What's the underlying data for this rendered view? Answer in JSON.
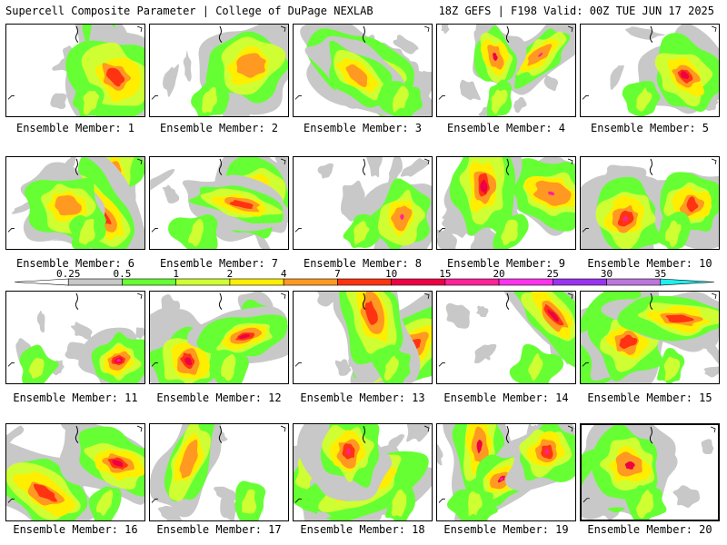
{
  "header": {
    "title_left": "Supercell Composite Parameter | College of DuPage NEXLAB",
    "title_right": "18Z GEFS | F198 Valid: 00Z TUE JUN 17 2025"
  },
  "caption_prefix": "Ensemble Member: ",
  "members": [
    {
      "id": 1,
      "label": "Ensemble Member: 1"
    },
    {
      "id": 2,
      "label": "Ensemble Member: 2"
    },
    {
      "id": 3,
      "label": "Ensemble Member: 3"
    },
    {
      "id": 4,
      "label": "Ensemble Member: 4"
    },
    {
      "id": 5,
      "label": "Ensemble Member: 5"
    },
    {
      "id": 6,
      "label": "Ensemble Member: 6"
    },
    {
      "id": 7,
      "label": "Ensemble Member: 7"
    },
    {
      "id": 8,
      "label": "Ensemble Member: 8"
    },
    {
      "id": 9,
      "label": "Ensemble Member: 9"
    },
    {
      "id": 10,
      "label": "Ensemble Member: 10"
    },
    {
      "id": 11,
      "label": "Ensemble Member: 11"
    },
    {
      "id": 12,
      "label": "Ensemble Member: 12"
    },
    {
      "id": 13,
      "label": "Ensemble Member: 13"
    },
    {
      "id": 14,
      "label": "Ensemble Member: 14"
    },
    {
      "id": 15,
      "label": "Ensemble Member: 15"
    },
    {
      "id": 16,
      "label": "Ensemble Member: 16"
    },
    {
      "id": 17,
      "label": "Ensemble Member: 17"
    },
    {
      "id": 18,
      "label": "Ensemble Member: 18"
    },
    {
      "id": 19,
      "label": "Ensemble Member: 19"
    },
    {
      "id": 20,
      "label": "Ensemble Member: 20",
      "selected": true
    }
  ],
  "colorbar": {
    "labels": [
      "0.25",
      "0.5",
      "1",
      "2",
      "4",
      "7",
      "10",
      "15",
      "20",
      "25",
      "30",
      "35"
    ],
    "colors": [
      "#ffffff",
      "#c8c8c8",
      "#66ff33",
      "#cfff33",
      "#ffee00",
      "#ff9922",
      "#ff3311",
      "#ee0044",
      "#ff2299",
      "#ff33ee",
      "#9933ee",
      "#bb77dd",
      "#22eeee"
    ]
  }
}
